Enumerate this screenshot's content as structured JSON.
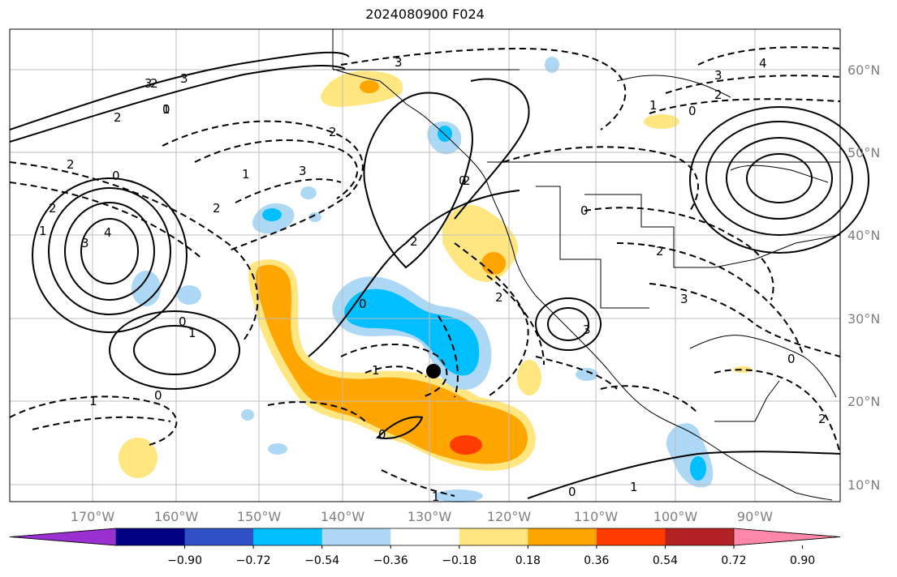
{
  "title": "2024080900 F024",
  "lon_labels": [
    "170°W",
    "160°W",
    "150°W",
    "140°W",
    "130°W",
    "120°W",
    "110°W",
    "100°W",
    "90°W"
  ],
  "lat_labels": [
    "60°N",
    "50°N",
    "40°N",
    "30°N",
    "20°N",
    "10°N"
  ],
  "colorbar": {
    "tick_labels": [
      "−0.90",
      "−0.72",
      "−0.54",
      "−0.36",
      "−0.18",
      "0.18",
      "0.36",
      "0.54",
      "0.72",
      "0.90"
    ],
    "colors": [
      "#9b30d0",
      "#000080",
      "#3050c8",
      "#00bfff",
      "#add8f5",
      "#ffffff",
      "#ffe680",
      "#ffa500",
      "#ff3c00",
      "#b22222",
      "#ff88aa"
    ]
  },
  "contour_labels": [
    "2",
    "3",
    "2",
    "1",
    "2",
    "0",
    "2",
    "3",
    "3",
    "4",
    "3",
    "2",
    "0",
    "2",
    "1",
    "3",
    "0",
    "2",
    "1",
    "2",
    "3",
    "4",
    "2",
    "1",
    "0",
    "1",
    "0",
    "0",
    "2",
    "1",
    "0",
    "1",
    "2",
    "3",
    "0",
    "1",
    "1",
    "0",
    "0",
    "0",
    "2",
    "3"
  ],
  "colors": {
    "land_line": "#000000",
    "grid": "#bdbdbd",
    "tick_text": "#7f7f7f"
  }
}
